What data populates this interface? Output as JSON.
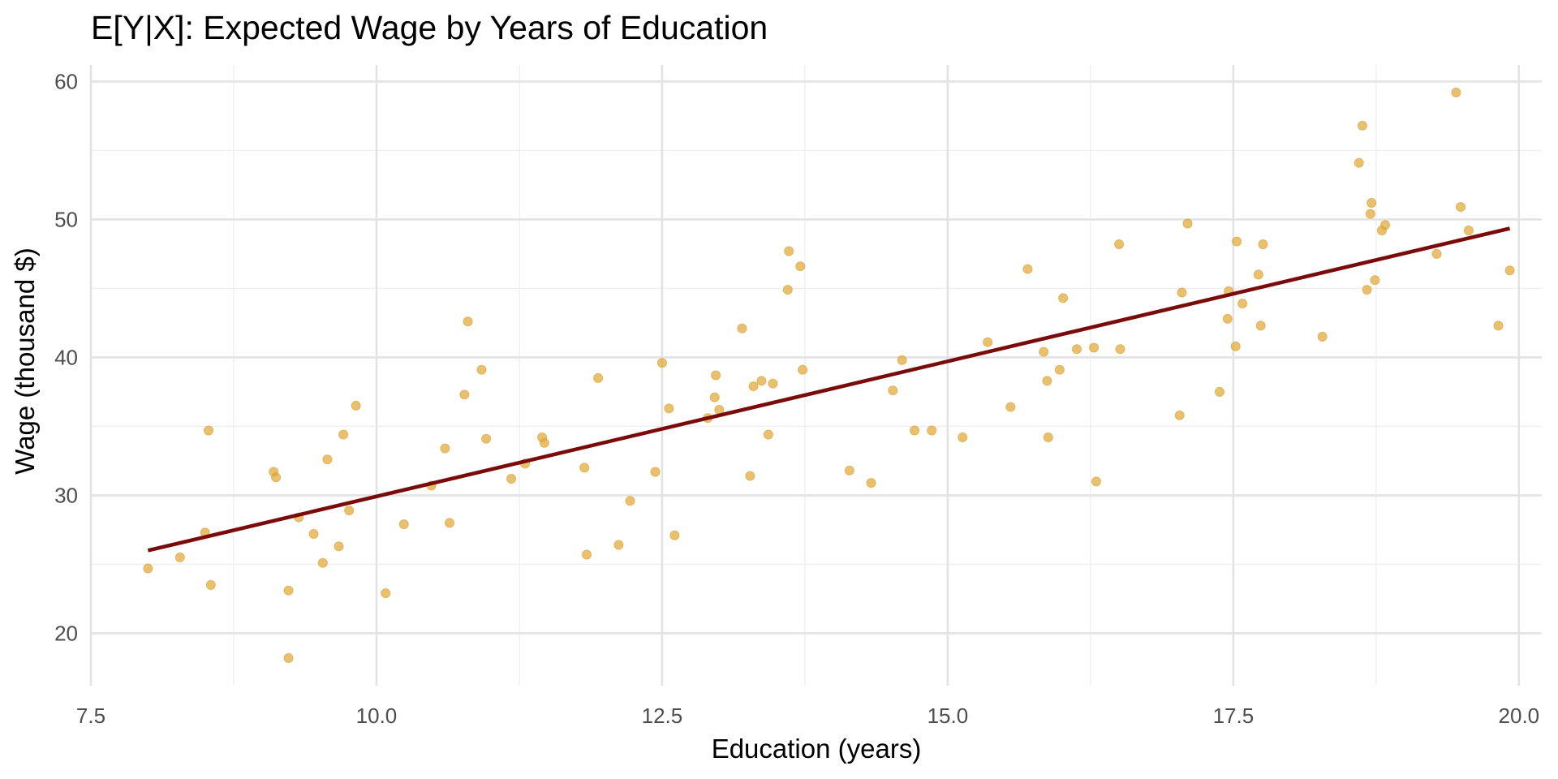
{
  "chart_data": {
    "type": "scatter",
    "title": "E[Y|X]: Expected Wage by Years of Education",
    "xlabel": "Education (years)",
    "ylabel": "Wage (thousand $)",
    "xlim": [
      7.5,
      20.2
    ],
    "ylim": [
      16.2,
      61.2
    ],
    "x_ticks": [
      7.5,
      10.0,
      12.5,
      15.0,
      17.5,
      20.0
    ],
    "x_tick_labels": [
      "7.5",
      "10.0",
      "12.5",
      "15.0",
      "17.5",
      "20.0"
    ],
    "y_ticks": [
      20,
      30,
      40,
      50,
      60
    ],
    "y_tick_labels": [
      "20",
      "30",
      "40",
      "50",
      "60"
    ],
    "grid": true,
    "colors": {
      "points": "#e0a734",
      "line": "#7a0b0b",
      "grid": "#e3e3e3"
    },
    "series": [
      {
        "type": "scatter",
        "points": [
          [
            8.0,
            24.7
          ],
          [
            8.28,
            25.5
          ],
          [
            8.5,
            27.3
          ],
          [
            8.53,
            34.7
          ],
          [
            8.55,
            23.5
          ],
          [
            9.1,
            31.7
          ],
          [
            9.12,
            31.3
          ],
          [
            9.23,
            23.1
          ],
          [
            9.23,
            18.2
          ],
          [
            9.32,
            28.4
          ],
          [
            9.45,
            27.2
          ],
          [
            9.53,
            25.1
          ],
          [
            9.57,
            32.6
          ],
          [
            9.67,
            26.3
          ],
          [
            9.71,
            34.4
          ],
          [
            9.76,
            28.9
          ],
          [
            9.82,
            36.5
          ],
          [
            10.08,
            22.9
          ],
          [
            10.24,
            27.9
          ],
          [
            10.48,
            30.7
          ],
          [
            10.6,
            33.4
          ],
          [
            10.64,
            28.0
          ],
          [
            10.77,
            37.3
          ],
          [
            10.8,
            42.6
          ],
          [
            10.92,
            39.1
          ],
          [
            10.96,
            34.1
          ],
          [
            11.18,
            31.2
          ],
          [
            11.3,
            32.3
          ],
          [
            11.45,
            34.2
          ],
          [
            11.47,
            33.8
          ],
          [
            11.82,
            32.0
          ],
          [
            11.84,
            25.7
          ],
          [
            11.94,
            38.5
          ],
          [
            12.12,
            26.4
          ],
          [
            12.22,
            29.6
          ],
          [
            12.44,
            31.7
          ],
          [
            12.5,
            39.6
          ],
          [
            12.56,
            36.3
          ],
          [
            12.61,
            27.1
          ],
          [
            12.9,
            35.6
          ],
          [
            12.96,
            37.1
          ],
          [
            12.97,
            38.7
          ],
          [
            13.0,
            36.2
          ],
          [
            13.2,
            42.1
          ],
          [
            13.27,
            31.4
          ],
          [
            13.3,
            37.9
          ],
          [
            13.37,
            38.3
          ],
          [
            13.43,
            34.4
          ],
          [
            13.47,
            38.1
          ],
          [
            13.6,
            44.9
          ],
          [
            13.61,
            47.7
          ],
          [
            13.71,
            46.6
          ],
          [
            13.73,
            39.1
          ],
          [
            14.14,
            31.8
          ],
          [
            14.33,
            30.9
          ],
          [
            14.52,
            37.6
          ],
          [
            14.6,
            39.8
          ],
          [
            14.71,
            34.7
          ],
          [
            14.86,
            34.7
          ],
          [
            15.13,
            34.2
          ],
          [
            15.35,
            41.1
          ],
          [
            15.55,
            36.4
          ],
          [
            15.7,
            46.4
          ],
          [
            15.84,
            40.4
          ],
          [
            15.87,
            38.3
          ],
          [
            15.88,
            34.2
          ],
          [
            15.98,
            39.1
          ],
          [
            16.01,
            44.3
          ],
          [
            16.13,
            40.6
          ],
          [
            16.28,
            40.7
          ],
          [
            16.3,
            31.0
          ],
          [
            16.5,
            48.2
          ],
          [
            16.51,
            40.6
          ],
          [
            17.03,
            35.8
          ],
          [
            17.05,
            44.7
          ],
          [
            17.1,
            49.7
          ],
          [
            17.38,
            37.5
          ],
          [
            17.45,
            42.8
          ],
          [
            17.46,
            44.8
          ],
          [
            17.52,
            40.8
          ],
          [
            17.53,
            48.4
          ],
          [
            17.58,
            43.9
          ],
          [
            17.72,
            46.0
          ],
          [
            17.74,
            42.3
          ],
          [
            17.76,
            48.2
          ],
          [
            18.28,
            41.5
          ],
          [
            18.6,
            54.1
          ],
          [
            18.63,
            56.8
          ],
          [
            18.67,
            44.9
          ],
          [
            18.7,
            50.4
          ],
          [
            18.71,
            51.2
          ],
          [
            18.74,
            45.6
          ],
          [
            18.8,
            49.2
          ],
          [
            18.83,
            49.6
          ],
          [
            19.28,
            47.5
          ],
          [
            19.45,
            59.2
          ],
          [
            19.49,
            50.9
          ],
          [
            19.56,
            49.2
          ],
          [
            19.82,
            42.3
          ],
          [
            19.92,
            46.3
          ]
        ]
      },
      {
        "type": "line",
        "points": [
          [
            8.0,
            26.0
          ],
          [
            19.92,
            49.35
          ]
        ]
      }
    ]
  }
}
